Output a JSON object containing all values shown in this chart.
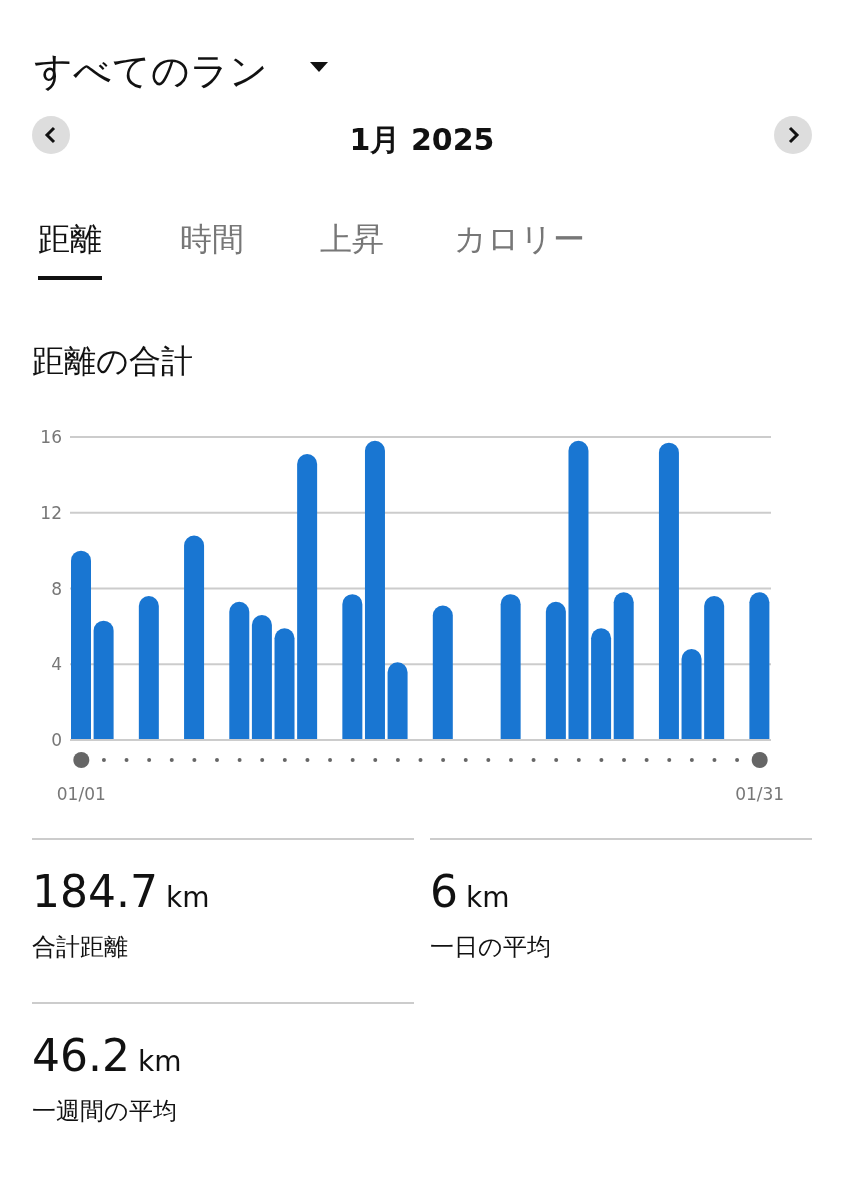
{
  "chart_data": {
    "type": "bar",
    "title": "距離の合計",
    "categories": [
      "01/01",
      null,
      null,
      null,
      null,
      null,
      null,
      null,
      null,
      null,
      null,
      null,
      null,
      null,
      null,
      null,
      null,
      null,
      null,
      null,
      null,
      null,
      null,
      null,
      null,
      null,
      null,
      null,
      null,
      null,
      "01/31"
    ],
    "values": [
      10.0,
      6.3,
      null,
      7.6,
      null,
      10.8,
      null,
      7.3,
      6.6,
      5.9,
      15.1,
      null,
      7.7,
      15.8,
      4.1,
      null,
      7.1,
      null,
      null,
      7.7,
      null,
      7.3,
      15.8,
      5.9,
      7.8,
      null,
      15.7,
      4.8,
      7.6,
      null,
      7.8
    ],
    "color": "#1976d2",
    "ylim": [
      0,
      16
    ],
    "yticks": [
      0,
      4,
      8,
      12,
      16
    ],
    "grid": "y",
    "legend": false,
    "annotations": [
      "すべてのラン",
      "1月 2025",
      "距離",
      "時間",
      "上昇",
      "カロリー",
      "184.7 km",
      "合計距離",
      "6 km",
      "一日の平均",
      "46.2 km",
      "一週間の平均"
    ]
  }
}
